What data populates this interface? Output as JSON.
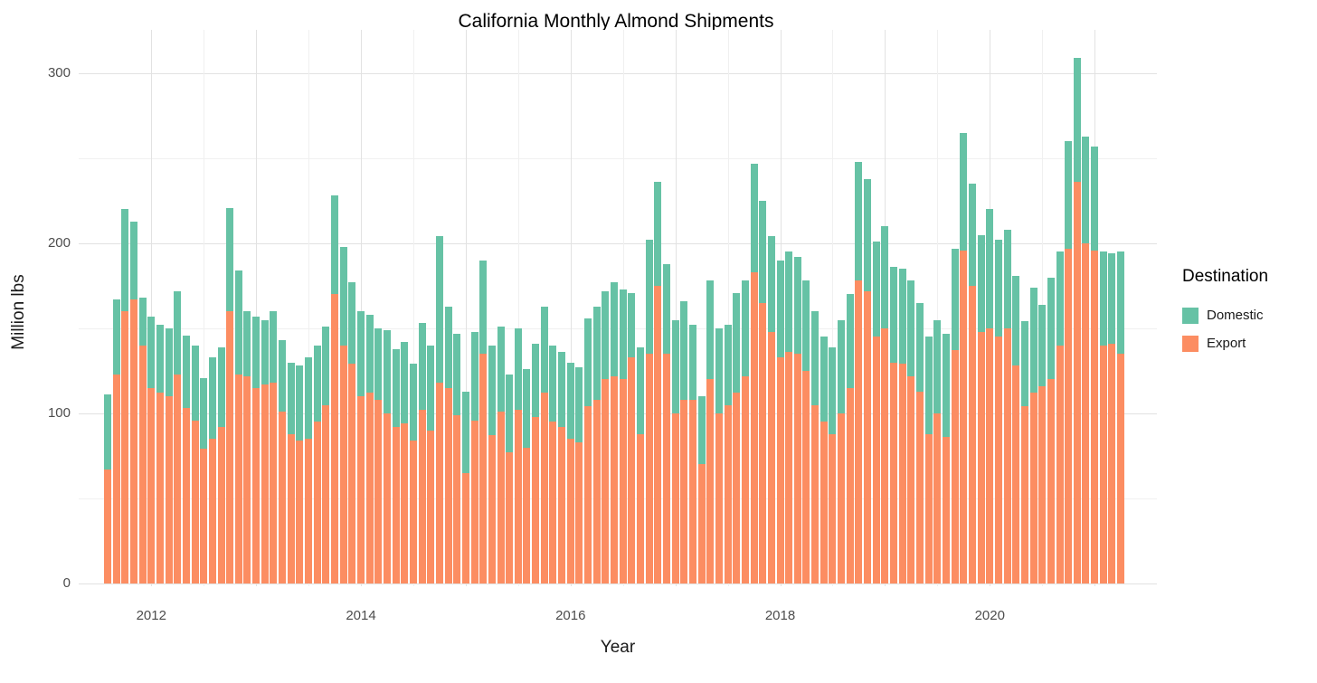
{
  "chart_data": {
    "type": "bar",
    "stacked": true,
    "title": "California Monthly Almond Shipments",
    "xlabel": "Year",
    "ylabel": "Million lbs",
    "x_unit": "month",
    "yticks": [
      0,
      100,
      200,
      300
    ],
    "yticks_minor": [
      50,
      150,
      250
    ],
    "ylim": [
      0,
      325
    ],
    "xticks": [
      "2012",
      "2014",
      "2016",
      "2018",
      "2020"
    ],
    "grid": true,
    "legend": {
      "title": "Destination",
      "position": "right",
      "entries": [
        {
          "label": "Domestic",
          "color": "#66C2A5"
        },
        {
          "label": "Export",
          "color": "#FC8D62"
        }
      ]
    },
    "stack_order_bottom_to_top": [
      "Export",
      "Domestic"
    ],
    "colors": {
      "background": "#FFFFFF",
      "grid_major": "#E2E2E2",
      "grid_minor": "#F0F0F0",
      "text": "#1A1A1A",
      "tick_text": "#4D4D4D"
    },
    "months": [
      "2011-08",
      "2011-09",
      "2011-10",
      "2011-11",
      "2011-12",
      "2012-01",
      "2012-02",
      "2012-03",
      "2012-04",
      "2012-05",
      "2012-06",
      "2012-07",
      "2012-08",
      "2012-09",
      "2012-10",
      "2012-11",
      "2012-12",
      "2013-01",
      "2013-02",
      "2013-03",
      "2013-04",
      "2013-05",
      "2013-06",
      "2013-07",
      "2013-08",
      "2013-09",
      "2013-10",
      "2013-11",
      "2013-12",
      "2014-01",
      "2014-02",
      "2014-03",
      "2014-04",
      "2014-05",
      "2014-06",
      "2014-07",
      "2014-08",
      "2014-09",
      "2014-10",
      "2014-11",
      "2014-12",
      "2015-01",
      "2015-02",
      "2015-03",
      "2015-04",
      "2015-05",
      "2015-06",
      "2015-07",
      "2015-08",
      "2015-09",
      "2015-10",
      "2015-11",
      "2015-12",
      "2016-01",
      "2016-02",
      "2016-03",
      "2016-04",
      "2016-05",
      "2016-06",
      "2016-07",
      "2016-08",
      "2016-09",
      "2016-10",
      "2016-11",
      "2016-12",
      "2017-01",
      "2017-02",
      "2017-03",
      "2017-04",
      "2017-05",
      "2017-06",
      "2017-07",
      "2017-08",
      "2017-09",
      "2017-10",
      "2017-11",
      "2017-12",
      "2018-01",
      "2018-02",
      "2018-03",
      "2018-04",
      "2018-05",
      "2018-06",
      "2018-07",
      "2018-08",
      "2018-09",
      "2018-10",
      "2018-11",
      "2018-12",
      "2019-01",
      "2019-02",
      "2019-03",
      "2019-04",
      "2019-05",
      "2019-06",
      "2019-07",
      "2019-08",
      "2019-09",
      "2019-10",
      "2019-11",
      "2019-12",
      "2020-01",
      "2020-02",
      "2020-03",
      "2020-04",
      "2020-05",
      "2020-06",
      "2020-07",
      "2020-08",
      "2020-09",
      "2020-10",
      "2020-11",
      "2020-12",
      "2021-01",
      "2021-02",
      "2021-03",
      "2021-04"
    ],
    "series": [
      {
        "name": "Export",
        "color": "#FC8D62",
        "values": [
          67,
          123,
          160,
          167,
          140,
          115,
          112,
          110,
          123,
          103,
          96,
          79,
          85,
          92,
          160,
          123,
          122,
          115,
          117,
          118,
          101,
          88,
          84,
          85,
          95,
          105,
          170,
          140,
          129,
          110,
          112,
          108,
          100,
          92,
          94,
          84,
          102,
          90,
          118,
          115,
          99,
          65,
          96,
          135,
          87,
          101,
          77,
          102,
          80,
          98,
          112,
          95,
          92,
          85,
          83,
          104,
          108,
          120,
          122,
          120,
          133,
          88,
          135,
          175,
          135,
          100,
          108,
          108,
          70,
          120,
          100,
          105,
          112,
          122,
          183,
          165,
          148,
          133,
          136,
          135,
          125,
          105,
          95,
          88,
          100,
          115,
          178,
          172,
          145,
          150,
          130,
          129,
          122,
          113,
          88,
          100,
          86,
          137,
          196,
          175,
          148,
          150,
          145,
          150,
          128,
          104,
          112,
          116,
          120,
          140,
          197,
          236,
          200,
          196,
          140,
          141,
          135
        ]
      },
      {
        "name": "Domestic",
        "color": "#66C2A5",
        "values": [
          44,
          44,
          60,
          46,
          28,
          42,
          40,
          40,
          49,
          43,
          44,
          42,
          48,
          47,
          61,
          61,
          38,
          42,
          38,
          42,
          42,
          42,
          44,
          48,
          45,
          46,
          58,
          58,
          48,
          50,
          46,
          42,
          49,
          46,
          48,
          45,
          51,
          50,
          86,
          48,
          48,
          48,
          52,
          55,
          53,
          50,
          46,
          48,
          46,
          43,
          51,
          45,
          44,
          45,
          44,
          52,
          55,
          52,
          55,
          53,
          38,
          51,
          67,
          61,
          53,
          55,
          58,
          44,
          40,
          58,
          50,
          47,
          59,
          56,
          64,
          60,
          56,
          57,
          59,
          57,
          53,
          55,
          50,
          51,
          55,
          55,
          70,
          66,
          56,
          60,
          56,
          56,
          56,
          52,
          57,
          55,
          61,
          60,
          69,
          60,
          57,
          70,
          57,
          58,
          53,
          50,
          62,
          48,
          60,
          55,
          63,
          73,
          63,
          61,
          55,
          53,
          60
        ]
      }
    ]
  }
}
